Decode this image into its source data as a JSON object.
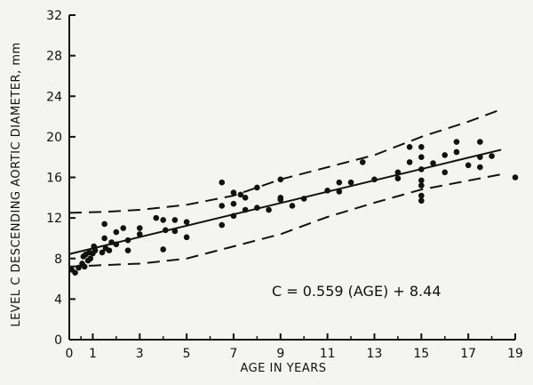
{
  "chart_data": {
    "type": "scatter",
    "title": "",
    "xlabel": "AGE IN YEARS",
    "ylabel": "LEVEL C DESCENDING AORTIC DIAMETER, mm",
    "xlim": [
      0,
      19
    ],
    "ylim": [
      0,
      32
    ],
    "x_ticks": [
      0,
      1,
      3,
      5,
      7,
      9,
      11,
      13,
      15,
      17,
      19
    ],
    "x_minor_ticks": [
      0.5,
      2,
      4,
      6,
      8,
      10,
      12,
      14,
      16,
      18
    ],
    "y_ticks": [
      0,
      4,
      8,
      12,
      16,
      20,
      24,
      28,
      32
    ],
    "grid": false,
    "annotation": "C = 0.559 (AGE) + 8.44",
    "regression": {
      "slope": 0.559,
      "intercept": 8.44
    },
    "confidence_upper": [
      [
        0,
        12.5
      ],
      [
        1.5,
        12.6
      ],
      [
        3,
        12.8
      ],
      [
        5,
        13.3
      ],
      [
        7,
        14.2
      ],
      [
        9,
        15.8
      ],
      [
        11,
        17.0
      ],
      [
        13,
        18.2
      ],
      [
        15,
        20.0
      ],
      [
        17,
        21.5
      ],
      [
        18.4,
        22.7
      ]
    ],
    "confidence_lower": [
      [
        0,
        7.2
      ],
      [
        1,
        7.3
      ],
      [
        2,
        7.4
      ],
      [
        3,
        7.5
      ],
      [
        5,
        8.0
      ],
      [
        7,
        9.2
      ],
      [
        9,
        10.4
      ],
      [
        11,
        12.1
      ],
      [
        13,
        13.5
      ],
      [
        15,
        14.8
      ],
      [
        18.4,
        16.3
      ]
    ],
    "points": [
      [
        0.1,
        6.9
      ],
      [
        0.25,
        6.6
      ],
      [
        0.4,
        7.1
      ],
      [
        0.55,
        7.5
      ],
      [
        0.6,
        8.2
      ],
      [
        0.65,
        7.2
      ],
      [
        0.7,
        8.4
      ],
      [
        0.8,
        7.8
      ],
      [
        0.85,
        8.6
      ],
      [
        0.9,
        8.0
      ],
      [
        1.0,
        8.5
      ],
      [
        1.05,
        9.2
      ],
      [
        1.1,
        8.8
      ],
      [
        1.4,
        8.6
      ],
      [
        1.5,
        10.0
      ],
      [
        1.5,
        11.4
      ],
      [
        1.55,
        9.0
      ],
      [
        1.7,
        8.8
      ],
      [
        1.8,
        9.6
      ],
      [
        2.0,
        10.6
      ],
      [
        2.0,
        9.4
      ],
      [
        2.3,
        11.0
      ],
      [
        2.5,
        9.8
      ],
      [
        2.5,
        8.8
      ],
      [
        3.0,
        11.0
      ],
      [
        3.0,
        10.4
      ],
      [
        3.7,
        12.0
      ],
      [
        4.0,
        11.8
      ],
      [
        4.0,
        8.9
      ],
      [
        4.1,
        10.8
      ],
      [
        4.5,
        11.8
      ],
      [
        4.5,
        10.7
      ],
      [
        5.0,
        11.6
      ],
      [
        5.0,
        10.1
      ],
      [
        6.5,
        15.5
      ],
      [
        6.5,
        13.2
      ],
      [
        6.5,
        11.3
      ],
      [
        7.0,
        14.5
      ],
      [
        7.0,
        13.4
      ],
      [
        7.0,
        12.2
      ],
      [
        7.3,
        14.3
      ],
      [
        7.5,
        14.0
      ],
      [
        7.5,
        12.8
      ],
      [
        8.0,
        15.0
      ],
      [
        8.0,
        13.0
      ],
      [
        8.5,
        12.8
      ],
      [
        9.0,
        15.8
      ],
      [
        9.0,
        14.0
      ],
      [
        9.0,
        13.8
      ],
      [
        9.5,
        13.2
      ],
      [
        10.0,
        13.9
      ],
      [
        11.0,
        14.7
      ],
      [
        11.5,
        14.6
      ],
      [
        11.5,
        15.5
      ],
      [
        12.0,
        15.5
      ],
      [
        12.5,
        17.5
      ],
      [
        13.0,
        15.8
      ],
      [
        14.0,
        16.5
      ],
      [
        14.0,
        15.9
      ],
      [
        14.5,
        19.0
      ],
      [
        14.5,
        17.5
      ],
      [
        15.0,
        19.0
      ],
      [
        15.0,
        18.0
      ],
      [
        15.0,
        16.8
      ],
      [
        15.0,
        15.7
      ],
      [
        15.0,
        15.2
      ],
      [
        15.0,
        14.2
      ],
      [
        15.0,
        13.7
      ],
      [
        15.5,
        17.4
      ],
      [
        16.0,
        18.2
      ],
      [
        16.0,
        16.5
      ],
      [
        16.5,
        19.5
      ],
      [
        16.5,
        18.5
      ],
      [
        17.0,
        17.2
      ],
      [
        17.5,
        19.5
      ],
      [
        17.5,
        18.0
      ],
      [
        17.5,
        17.0
      ],
      [
        18.0,
        18.1
      ],
      [
        19.0,
        16.0
      ]
    ]
  }
}
